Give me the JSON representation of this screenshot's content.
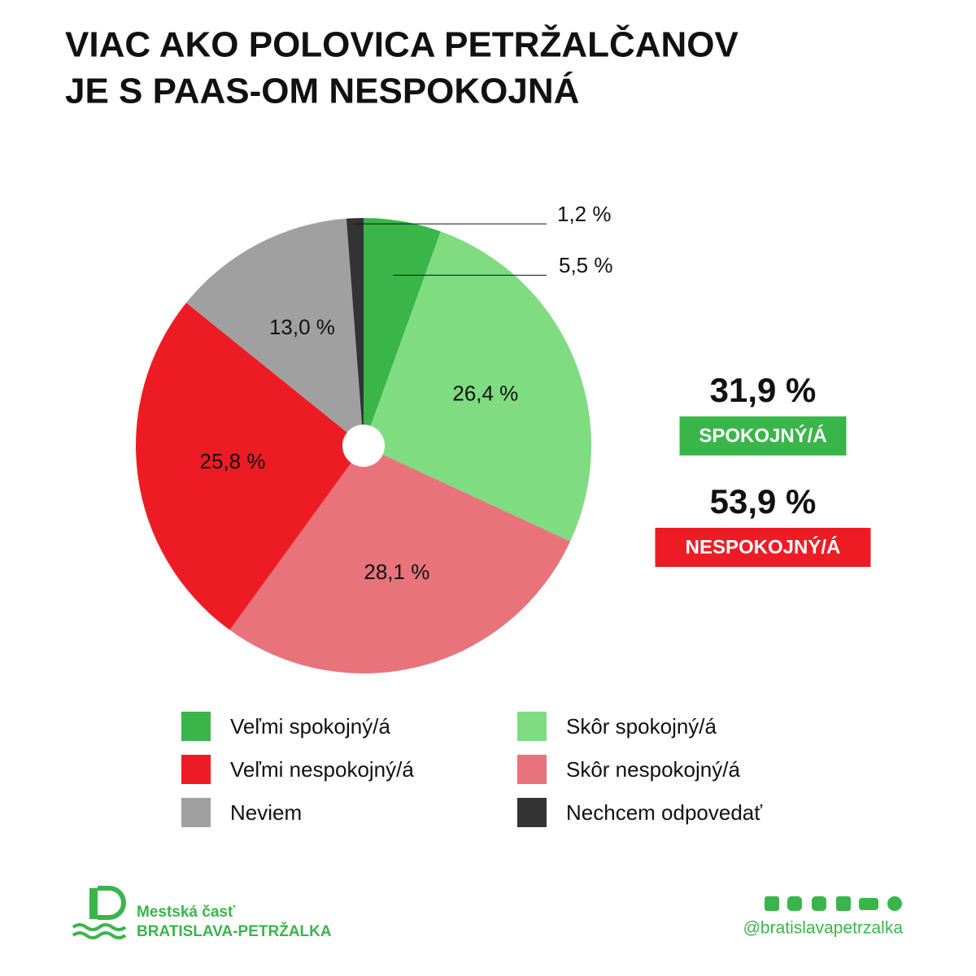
{
  "chart_data": {
    "type": "pie",
    "title": [
      "VIAC AKO POLOVICA PETRŽALČANOV",
      "JE S PAAS-OM NESPOKOJNÁ"
    ],
    "series": [
      {
        "name": "Veľmi spokojný/á",
        "color": "#3ab54a",
        "values": [
          5.5
        ],
        "value_labels": [
          "5,5 %"
        ]
      },
      {
        "name": "Skôr spokojný/á",
        "color": "#7fdc80",
        "values": [
          26.4
        ],
        "value_labels": [
          "26,4 %"
        ]
      },
      {
        "name": "Skôr nespokojný/á",
        "color": "#e8737b",
        "values": [
          28.1
        ],
        "value_labels": [
          "28,1 %"
        ]
      },
      {
        "name": "Veľmi nespokojný/á",
        "color": "#ed1c24",
        "values": [
          25.8
        ],
        "value_labels": [
          "25,8 %"
        ]
      },
      {
        "name": "Neviem",
        "color": "#a0a0a0",
        "values": [
          13.0
        ],
        "value_labels": [
          "13,0 %"
        ]
      },
      {
        "name": "Nechcem odpovedať",
        "color": "#333333",
        "values": [
          1.2
        ],
        "value_labels": [
          "1,2 %"
        ]
      }
    ],
    "summary": [
      {
        "value": 31.9,
        "value_label": "31,9 %",
        "label": "SPOKOJNÝ/Á",
        "color": "#3ab54a"
      },
      {
        "value": 53.9,
        "value_label": "53,9 %",
        "label": "NESPOKOJNÝ/Á",
        "color": "#ed1c24"
      }
    ]
  },
  "footer": {
    "org_line1": "Mestská časť",
    "org_line2": "BRATISLAVA-PETRŽALKA",
    "handle": "@bratislavapetrzalka"
  }
}
